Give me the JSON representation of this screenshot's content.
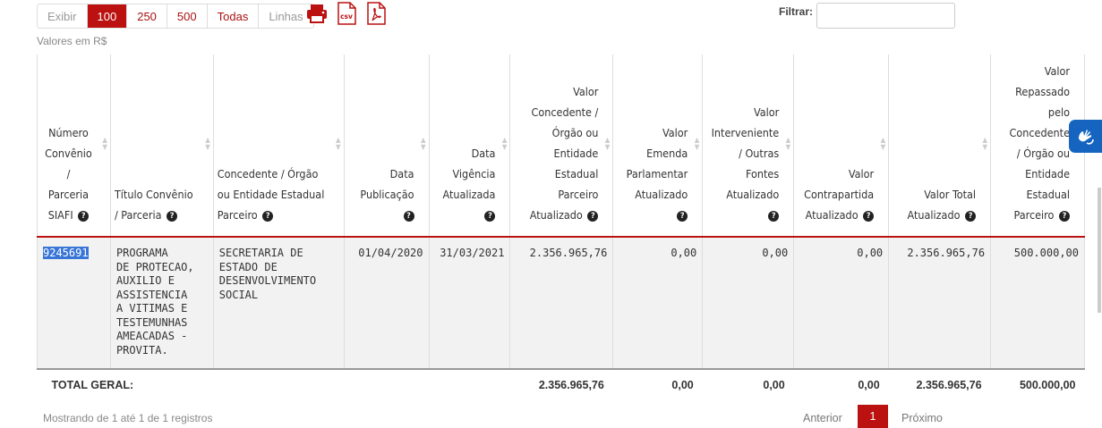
{
  "toolbar": {
    "page_sizes": [
      "Exibir",
      "100",
      "250",
      "500",
      "Todas",
      "Linhas"
    ],
    "active_size": "100",
    "export_icons": [
      "print-icon",
      "csv-icon",
      "pdf-icon"
    ],
    "filter_label": "Filtrar:",
    "filter_value": ""
  },
  "valores_label": "Valores em R$",
  "table": {
    "headers": [
      "Número Convênio / Parceria SIAFI",
      "Título Convênio / Parceria",
      "Concedente / Órgão ou Entidade Estadual Parceiro",
      "Data Publicação",
      "Data Vigência Atualizada",
      "Valor Concedente / Órgão ou Entidade Estadual Parceiro Atualizado",
      "Valor Emenda Parlamentar Atualizado",
      "Valor Interveniente / Outras Fontes Atualizado",
      "Valor Contrapartida Atualizado",
      "Valor Total Atualizado",
      "Valor Repassado pelo Concedente / Órgão ou Entidade Estadual Parceiro"
    ],
    "header_lines": [
      [
        "Número",
        "Convênio",
        "/",
        "Parceria",
        "SIAFI"
      ],
      [
        "Título Convênio",
        "/ Parceria"
      ],
      [
        "Concedente / Órgão",
        "ou Entidade Estadual",
        "Parceiro"
      ],
      [
        "Data",
        "Publicação"
      ],
      [
        "Data",
        "Vigência",
        "Atualizada"
      ],
      [
        "Valor",
        "Concedente /",
        "Órgão ou",
        "Entidade",
        "Estadual",
        "Parceiro",
        "Atualizado"
      ],
      [
        "Valor",
        "Emenda",
        "Parlamentar",
        "Atualizado"
      ],
      [
        "Valor",
        "Interveniente",
        "/ Outras",
        "Fontes",
        "Atualizado"
      ],
      [
        "Valor",
        "Contrapartida",
        "Atualizado"
      ],
      [
        "Valor Total",
        "Atualizado"
      ],
      [
        "Valor",
        "Repassado",
        "pelo",
        "Concedente",
        "/ Órgão ou",
        "Entidade",
        "Estadual",
        "Parceiro"
      ]
    ],
    "rows": [
      {
        "numero": "9245691",
        "titulo_lines": [
          "PROGRAMA",
          "DE PROTECAO,",
          "AUXILIO E",
          "ASSISTENCIA",
          "A VITIMAS E",
          "TESTEMUNHAS",
          "AMEACADAS -",
          "PROVITA."
        ],
        "concedente_lines": [
          "SECRETARIA DE",
          "ESTADO DE",
          "DESENVOLVIMENTO",
          "SOCIAL"
        ],
        "data_publicacao": "01/04/2020",
        "data_vigencia": "31/03/2021",
        "valor_concedente": "2.356.965,76",
        "valor_emenda": "0,00",
        "valor_interveniente": "0,00",
        "valor_contrapartida": "0,00",
        "valor_total": "2.356.965,76",
        "valor_repassado": "500.000,00"
      }
    ],
    "total": {
      "label": "TOTAL GERAL:",
      "valor_concedente": "2.356.965,76",
      "valor_emenda": "0,00",
      "valor_interveniente": "0,00",
      "valor_contrapartida": "0,00",
      "valor_total": "2.356.965,76",
      "valor_repassado": "500.000,00"
    }
  },
  "footer": {
    "info": "Mostrando de 1 até 1 de 1 registros",
    "prev": "Anterior",
    "page": "1",
    "next": "Próximo"
  },
  "colors": {
    "accent": "#bb1111",
    "row_bg": "#f2f2f2",
    "selection": "#3875d7",
    "vlibras": "#1565c0"
  }
}
